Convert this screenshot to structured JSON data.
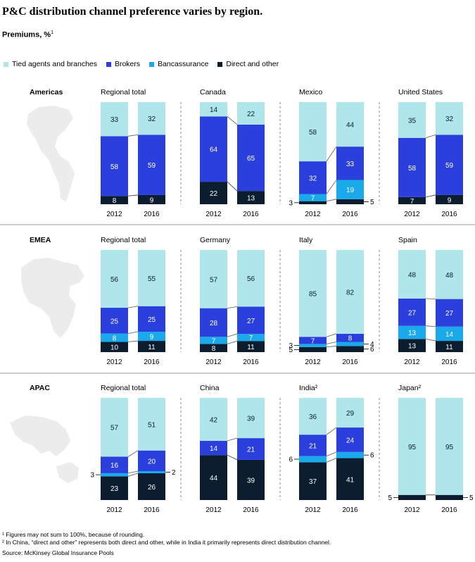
{
  "title": "P&C distribution channel preference varies by region.",
  "subtitle": "Premiums, %",
  "subtitle_footnote_mark": "1",
  "legend": [
    {
      "label": "Tied agents and branches",
      "color": "#aee6ec"
    },
    {
      "label": "Brokers",
      "color": "#2a3fdc"
    },
    {
      "label": "Bancassurance",
      "color": "#1aa9ea"
    },
    {
      "label": "Direct and other",
      "color": "#0b1d2e"
    }
  ],
  "footnotes": [
    "¹ Figures may not sum to 100%, because of rounding.",
    "² In China, “direct and other” represents both direct and other, while in India it primarily represents direct distribution channel."
  ],
  "source": "Source: McKinsey Global Insurance Pools",
  "chart_data": {
    "type": "bar",
    "stacked": true,
    "categories": [
      "2012",
      "2016"
    ],
    "series_names": [
      "Tied agents and branches",
      "Brokers",
      "Bancassurance",
      "Direct and other"
    ],
    "regions": [
      {
        "name": "Americas",
        "panels": [
          {
            "title": "Regional total",
            "values": {
              "2012": [
                33,
                58,
                0,
                8
              ],
              "2016": [
                32,
                59,
                0,
                9
              ]
            }
          },
          {
            "title": "Canada",
            "values": {
              "2012": [
                14,
                64,
                0,
                22
              ],
              "2016": [
                22,
                65,
                0,
                13
              ]
            }
          },
          {
            "title": "Mexico",
            "values": {
              "2012": [
                58,
                32,
                7,
                3
              ],
              "2016": [
                44,
                33,
                19,
                5
              ]
            }
          },
          {
            "title": "United States",
            "values": {
              "2012": [
                35,
                58,
                0,
                7
              ],
              "2016": [
                32,
                59,
                0,
                9
              ]
            }
          }
        ]
      },
      {
        "name": "EMEA",
        "panels": [
          {
            "title": "Regional total",
            "values": {
              "2012": [
                56,
                25,
                8,
                10
              ],
              "2016": [
                55,
                25,
                9,
                11
              ]
            }
          },
          {
            "title": "Germany",
            "values": {
              "2012": [
                57,
                28,
                7,
                8
              ],
              "2016": [
                56,
                27,
                7,
                11
              ]
            }
          },
          {
            "title": "Italy",
            "values": {
              "2012": [
                85,
                7,
                3,
                5
              ],
              "2016": [
                82,
                8,
                4,
                6
              ]
            }
          },
          {
            "title": "Spain",
            "values": {
              "2012": [
                48,
                27,
                13,
                13
              ],
              "2016": [
                48,
                27,
                14,
                11
              ]
            }
          }
        ]
      },
      {
        "name": "APAC",
        "panels": [
          {
            "title": "Regional total",
            "values": {
              "2012": [
                57,
                16,
                3,
                23
              ],
              "2016": [
                51,
                20,
                2,
                26
              ]
            }
          },
          {
            "title": "China",
            "values": {
              "2012": [
                42,
                14,
                0,
                44
              ],
              "2016": [
                39,
                21,
                0,
                39
              ]
            }
          },
          {
            "title": "India²",
            "values": {
              "2012": [
                36,
                21,
                6,
                37
              ],
              "2016": [
                29,
                24,
                6,
                41
              ]
            }
          },
          {
            "title": "Japan²",
            "values": {
              "2012": [
                95,
                0,
                0,
                5
              ],
              "2016": [
                95,
                0,
                0,
                5
              ]
            }
          }
        ]
      }
    ]
  }
}
